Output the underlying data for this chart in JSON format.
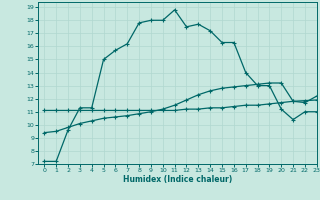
{
  "xlabel": "Humidex (Indice chaleur)",
  "xlim": [
    -0.5,
    23
  ],
  "ylim": [
    7,
    19.4
  ],
  "yticks": [
    7,
    8,
    9,
    10,
    11,
    12,
    13,
    14,
    15,
    16,
    17,
    18,
    19
  ],
  "xticks": [
    0,
    1,
    2,
    3,
    4,
    5,
    6,
    7,
    8,
    9,
    10,
    11,
    12,
    13,
    14,
    15,
    16,
    17,
    18,
    19,
    20,
    21,
    22,
    23
  ],
  "background_color": "#c8e8e0",
  "grid_color": "#b0d8d0",
  "line_color": "#006868",
  "line1_x": [
    0,
    1,
    2,
    3,
    4,
    5,
    6,
    7,
    8,
    9,
    10,
    11,
    12,
    13,
    14,
    15,
    16,
    17,
    18,
    19,
    20,
    21,
    22,
    23
  ],
  "line1_y": [
    7.2,
    7.2,
    9.6,
    11.3,
    11.3,
    15.0,
    15.7,
    16.2,
    17.8,
    18.0,
    18.0,
    18.8,
    17.5,
    17.7,
    17.2,
    16.3,
    16.3,
    14.0,
    13.0,
    13.0,
    11.2,
    10.4,
    11.0,
    11.0
  ],
  "line2_x": [
    0,
    1,
    2,
    3,
    4,
    5,
    6,
    7,
    8,
    9,
    10,
    11,
    12,
    13,
    14,
    15,
    16,
    17,
    18,
    19,
    20,
    21,
    22,
    23
  ],
  "line2_y": [
    11.1,
    11.1,
    11.1,
    11.1,
    11.1,
    11.1,
    11.1,
    11.1,
    11.1,
    11.1,
    11.1,
    11.1,
    11.2,
    11.2,
    11.3,
    11.3,
    11.4,
    11.5,
    11.5,
    11.6,
    11.7,
    11.8,
    11.85,
    11.9
  ],
  "line3_x": [
    0,
    1,
    2,
    3,
    4,
    5,
    6,
    7,
    8,
    9,
    10,
    11,
    12,
    13,
    14,
    15,
    16,
    17,
    18,
    19,
    20,
    21,
    22,
    23
  ],
  "line3_y": [
    9.4,
    9.5,
    9.8,
    10.1,
    10.3,
    10.5,
    10.6,
    10.7,
    10.85,
    11.0,
    11.2,
    11.5,
    11.9,
    12.3,
    12.6,
    12.8,
    12.9,
    13.0,
    13.1,
    13.2,
    13.2,
    11.8,
    11.7,
    12.2
  ]
}
